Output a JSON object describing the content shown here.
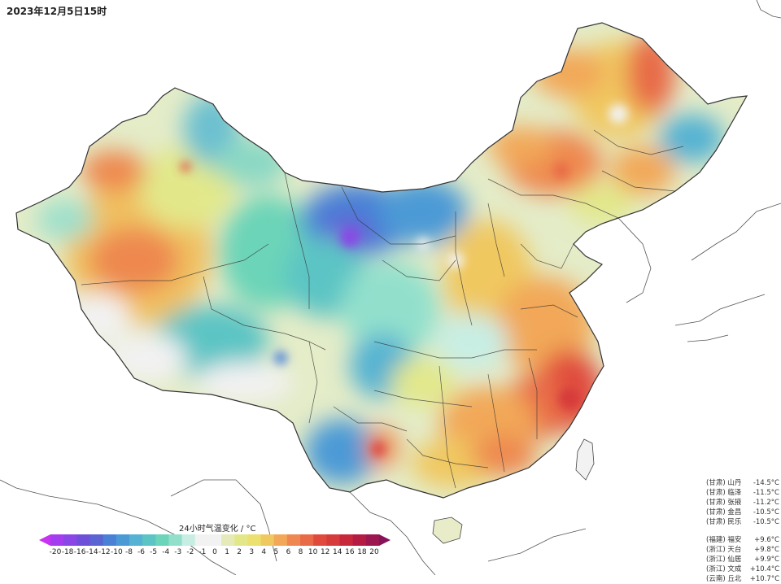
{
  "map_title": "2023年12月5日15时",
  "legend": {
    "title": "24小时气温变化 / °C",
    "ticks": [
      "-20",
      "-18",
      "-16",
      "-14",
      "-12",
      "-10",
      "-8",
      "-6",
      "-5",
      "-4",
      "-3",
      "-2",
      "-1",
      "0",
      "1",
      "2",
      "3",
      "4",
      "5",
      "6",
      "8",
      "10",
      "12",
      "14",
      "16",
      "18",
      "20"
    ],
    "colors": [
      "#c832f0",
      "#a43cf0",
      "#8a46e6",
      "#6e50d8",
      "#5a64d2",
      "#4a80d6",
      "#4b9ad6",
      "#55b2d2",
      "#5cc4c4",
      "#6cd4b8",
      "#92e0cc",
      "#c8eee4",
      "#f2f2f2",
      "#f2f2f2",
      "#e6eab8",
      "#e2e88a",
      "#ece070",
      "#f0c860",
      "#f2a858",
      "#ee8850",
      "#e86a46",
      "#e04a3c",
      "#d63a3a",
      "#c8283c",
      "#b41c44",
      "#9c1650",
      "#86125c"
    ]
  },
  "stations_drop": [
    {
      "prov": "(甘肃)",
      "name": "山丹",
      "value": "-14.5°C"
    },
    {
      "prov": "(甘肃)",
      "name": "临泽",
      "value": "-11.5°C"
    },
    {
      "prov": "(甘肃)",
      "name": "张掖",
      "value": "-11.2°C"
    },
    {
      "prov": "(甘肃)",
      "name": "金昌",
      "value": "-10.5°C"
    },
    {
      "prov": "(甘肃)",
      "name": "民乐",
      "value": "-10.5°C"
    }
  ],
  "stations_rise": [
    {
      "prov": "(福建)",
      "name": "福安",
      "value": "+9.6°C"
    },
    {
      "prov": "(浙江)",
      "name": "天台",
      "value": "+9.8°C"
    },
    {
      "prov": "(浙江)",
      "name": "仙居",
      "value": "+9.9°C"
    },
    {
      "prov": "(浙江)",
      "name": "文成",
      "value": "+10.4°C"
    },
    {
      "prov": "(云南)",
      "name": "丘北",
      "value": "+10.7°C"
    }
  ]
}
